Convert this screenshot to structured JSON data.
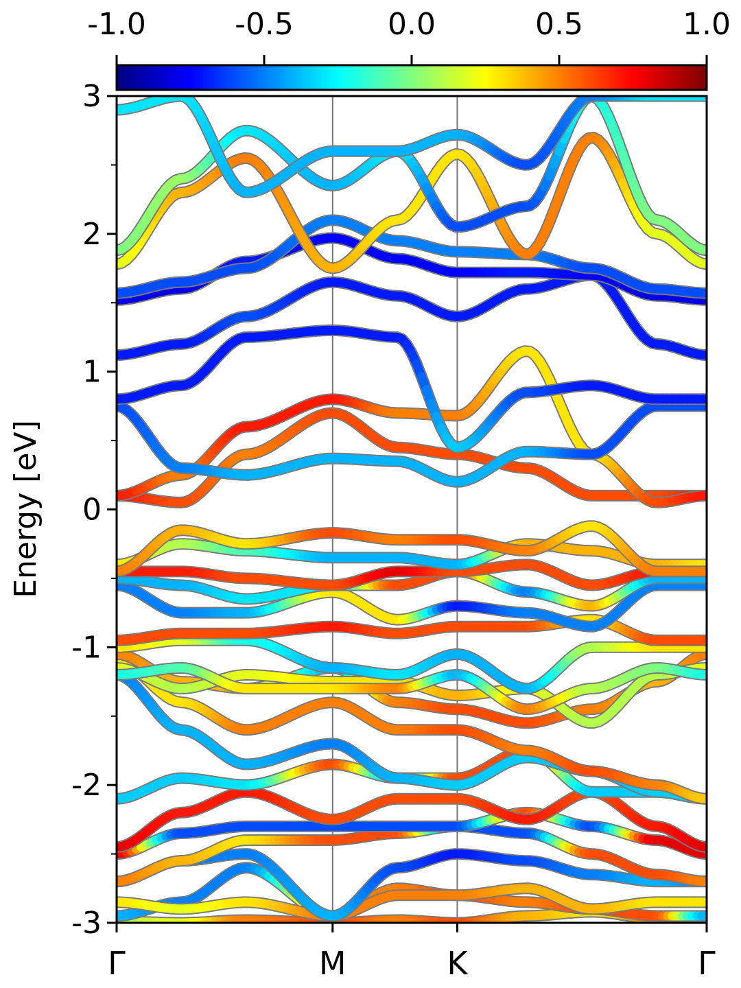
{
  "chart_data": {
    "type": "line",
    "title": "",
    "xlabel": "",
    "ylabel": "Energy [eV]",
    "ylim": [
      -3,
      3
    ],
    "y_ticks": [
      -3,
      -2,
      -1,
      0,
      1,
      2,
      3
    ],
    "x_ticks": [
      {
        "label": "Γ",
        "k": 0.0
      },
      {
        "label": "M",
        "k": 1.0
      },
      {
        "label": "K",
        "k": 1.577
      },
      {
        "label": "Γ",
        "k": 2.732
      }
    ],
    "colorbar": {
      "colormap": "jet",
      "range": [
        -1.0,
        1.0
      ],
      "ticks": [
        "-1.0",
        "-0.5",
        "0.0",
        "0.5",
        "1.0"
      ]
    },
    "series": [
      {
        "k": [
          0,
          0.3,
          0.6,
          1.0,
          1.3,
          1.577,
          1.9,
          2.2,
          2.5,
          2.732
        ],
        "values": [
          -2.99,
          -3.0,
          -2.98,
          -3.0,
          -2.98,
          -3.0,
          -2.95,
          -2.92,
          -2.97,
          -3.0
        ],
        "weights": [
          0.1,
          0.2,
          0.5,
          0.6,
          0.5,
          0.6,
          0.4,
          0.3,
          0.5,
          0.1
        ]
      },
      {
        "k": [
          0,
          0.3,
          0.6,
          1.0,
          1.3,
          1.577,
          1.9,
          2.2,
          2.5,
          2.732
        ],
        "values": [
          -2.95,
          -2.85,
          -2.6,
          -2.95,
          -2.75,
          -2.8,
          -2.85,
          -2.9,
          -2.95,
          -2.95
        ],
        "weights": [
          -0.4,
          -0.5,
          -0.5,
          0.5,
          0.5,
          0.6,
          0.5,
          0.6,
          0.6,
          -0.4
        ]
      },
      {
        "k": [
          0,
          0.3,
          0.6,
          1.0,
          1.3,
          1.577,
          1.9,
          2.2,
          2.5,
          2.732
        ],
        "values": [
          -2.85,
          -2.9,
          -2.85,
          -2.95,
          -2.8,
          -2.8,
          -2.75,
          -2.9,
          -2.85,
          -2.85
        ],
        "weights": [
          0.3,
          0.2,
          0.3,
          0.5,
          0.5,
          0.5,
          0.4,
          0.4,
          0.3,
          0.3
        ]
      },
      {
        "k": [
          0,
          0.3,
          0.6,
          1.0,
          1.3,
          1.577,
          1.9,
          2.2,
          2.5,
          2.732
        ],
        "values": [
          -2.7,
          -2.55,
          -2.5,
          -2.95,
          -2.6,
          -2.5,
          -2.55,
          -2.65,
          -2.7,
          -2.7
        ],
        "weights": [
          -0.5,
          -0.5,
          -0.5,
          -0.4,
          -0.6,
          -0.7,
          -0.6,
          -0.5,
          -0.4,
          -0.5
        ]
      },
      {
        "k": [
          0,
          0.3,
          0.6,
          1.0,
          1.3,
          1.577,
          1.9,
          2.2,
          2.5,
          2.732
        ],
        "values": [
          -2.7,
          -2.55,
          -2.4,
          -2.4,
          -2.35,
          -2.3,
          -2.35,
          -2.5,
          -2.65,
          -2.7
        ],
        "weights": [
          0.5,
          0.4,
          0.3,
          0.6,
          0.6,
          -0.6,
          -0.6,
          0.6,
          0.6,
          0.5
        ]
      },
      {
        "k": [
          0,
          0.3,
          0.6,
          1.0,
          1.3,
          1.577,
          1.9,
          2.2,
          2.5,
          2.732
        ],
        "values": [
          -2.5,
          -2.35,
          -2.3,
          -2.3,
          -2.3,
          -2.3,
          -2.2,
          -2.3,
          -2.4,
          -2.5
        ],
        "weights": [
          0.8,
          -0.6,
          -0.6,
          -0.6,
          -0.6,
          -0.6,
          0.6,
          -0.6,
          0.8,
          0.8
        ]
      },
      {
        "k": [
          0,
          0.3,
          0.6,
          1.0,
          1.3,
          1.577,
          1.9,
          2.2,
          2.5,
          2.732
        ],
        "values": [
          -2.45,
          -2.2,
          -2.05,
          -2.25,
          -2.1,
          -2.1,
          -2.25,
          -2.05,
          -2.3,
          -2.45
        ],
        "weights": [
          0.8,
          0.7,
          0.7,
          0.6,
          0.6,
          0.6,
          0.7,
          0.6,
          0.7,
          0.8
        ]
      },
      {
        "k": [
          0,
          0.3,
          0.6,
          1.0,
          1.3,
          1.577,
          1.9,
          2.2,
          2.5,
          2.732
        ],
        "values": [
          -2.1,
          -1.95,
          -2.0,
          -1.85,
          -1.95,
          -1.95,
          -1.75,
          -2.05,
          -2.05,
          -2.1
        ],
        "weights": [
          -0.35,
          -0.35,
          -0.3,
          0.6,
          -0.4,
          0.6,
          0.6,
          -0.35,
          -0.35,
          -0.35
        ]
      },
      {
        "k": [
          0,
          0.3,
          0.6,
          1.0,
          1.3,
          1.577,
          1.9,
          2.2,
          2.5,
          2.732
        ],
        "values": [
          -1.2,
          -1.6,
          -1.85,
          -1.7,
          -1.95,
          -2.0,
          -1.8,
          -1.9,
          -2.05,
          -2.1
        ],
        "weights": [
          -0.5,
          -0.4,
          -0.4,
          -0.5,
          -0.4,
          -0.35,
          -0.35,
          -0.4,
          -0.35,
          -0.35
        ]
      },
      {
        "k": [
          0,
          0.3,
          0.6,
          1.0,
          1.3,
          1.577,
          1.9,
          2.2,
          2.5,
          2.732
        ],
        "values": [
          -1.1,
          -1.4,
          -1.6,
          -1.4,
          -1.6,
          -1.6,
          -1.75,
          -1.9,
          -2.0,
          -2.1
        ],
        "weights": [
          0.3,
          0.3,
          0.5,
          0.5,
          0.5,
          0.6,
          0.5,
          0.6,
          0.5,
          0.35
        ]
      },
      {
        "k": [
          0,
          0.3,
          0.6,
          1.0,
          1.3,
          1.577,
          1.9,
          2.2,
          2.5,
          2.732
        ],
        "values": [
          -1.05,
          -1.25,
          -1.3,
          -1.15,
          -1.4,
          -1.45,
          -1.55,
          -1.45,
          -1.25,
          -1.05
        ],
        "weights": [
          0.5,
          0.4,
          0.4,
          -0.4,
          0.5,
          0.6,
          0.6,
          0.5,
          0.4,
          0.5
        ]
      },
      {
        "k": [
          0,
          0.3,
          0.6,
          1.0,
          1.3,
          1.577,
          1.9,
          2.2,
          2.5,
          2.732
        ],
        "values": [
          -1.15,
          -1.3,
          -1.2,
          -1.25,
          -1.25,
          -1.35,
          -1.3,
          -1.55,
          -1.2,
          -1.15
        ],
        "weights": [
          0.2,
          0.1,
          0.2,
          0.3,
          0.3,
          0.4,
          0.2,
          0.1,
          0.1,
          0.2
        ]
      },
      {
        "k": [
          0,
          0.3,
          0.6,
          1.0,
          1.3,
          1.577,
          1.9,
          2.2,
          2.5,
          2.732
        ],
        "values": [
          -1.2,
          -1.15,
          -1.3,
          -1.3,
          -1.3,
          -1.2,
          -1.45,
          -1.3,
          -1.15,
          -1.2
        ],
        "weights": [
          -0.2,
          -0.1,
          0.3,
          0.3,
          0.5,
          -0.4,
          0.5,
          0.1,
          0.0,
          -0.2
        ]
      },
      {
        "k": [
          0,
          0.3,
          0.6,
          1.0,
          1.3,
          1.577,
          1.9,
          2.2,
          2.5,
          2.732
        ],
        "values": [
          -1.0,
          -0.95,
          -0.95,
          -1.15,
          -1.2,
          -1.05,
          -1.3,
          -1.0,
          -1.0,
          -1.0
        ],
        "weights": [
          0.3,
          0.2,
          -0.2,
          -0.4,
          -0.3,
          -0.4,
          -0.4,
          0.1,
          0.3,
          0.3
        ]
      },
      {
        "k": [
          0,
          0.3,
          0.6,
          1.0,
          1.3,
          1.577,
          1.9,
          2.2,
          2.5,
          2.732
        ],
        "values": [
          -0.95,
          -0.9,
          -0.9,
          -0.85,
          -0.9,
          -0.85,
          -0.85,
          -0.8,
          -0.95,
          -0.95
        ],
        "weights": [
          0.6,
          0.6,
          0.6,
          0.7,
          0.6,
          0.6,
          0.6,
          0.3,
          0.6,
          0.6
        ]
      },
      {
        "k": [
          0,
          0.3,
          0.6,
          1.0,
          1.3,
          1.577,
          1.9,
          2.2,
          2.5,
          2.732
        ],
        "values": [
          -0.55,
          -0.75,
          -0.75,
          -0.6,
          -0.8,
          -0.7,
          -0.75,
          -0.85,
          -0.55,
          -0.55
        ],
        "weights": [
          -0.5,
          -0.5,
          -0.4,
          0.3,
          0.3,
          -0.7,
          -0.5,
          -0.5,
          -0.5,
          -0.5
        ]
      },
      {
        "k": [
          0,
          0.3,
          0.6,
          1.0,
          1.3,
          1.577,
          1.9,
          2.2,
          2.5,
          2.732
        ],
        "values": [
          -0.5,
          -0.55,
          -0.65,
          -0.55,
          -0.55,
          -0.45,
          -0.6,
          -0.7,
          -0.5,
          -0.5
        ],
        "weights": [
          -0.4,
          -0.4,
          -0.3,
          -0.3,
          0.6,
          0.6,
          -0.5,
          0.4,
          -0.4,
          -0.4
        ]
      },
      {
        "k": [
          0,
          0.3,
          0.6,
          1.0,
          1.3,
          1.577,
          1.9,
          2.2,
          2.5,
          2.732
        ],
        "values": [
          -0.45,
          -0.45,
          -0.5,
          -0.55,
          -0.45,
          -0.45,
          -0.4,
          -0.55,
          -0.45,
          -0.45
        ],
        "weights": [
          0.7,
          0.7,
          0.6,
          0.6,
          0.8,
          0.6,
          0.6,
          0.6,
          0.7,
          0.7
        ]
      },
      {
        "k": [
          0,
          0.3,
          0.6,
          1.0,
          1.3,
          1.577,
          1.9,
          2.2,
          2.5,
          2.732
        ],
        "values": [
          -0.4,
          -0.25,
          -0.3,
          -0.35,
          -0.35,
          -0.4,
          -0.25,
          -0.3,
          -0.4,
          -0.4
        ],
        "weights": [
          0.3,
          0.1,
          -0.1,
          -0.4,
          -0.4,
          -0.4,
          0.4,
          0.4,
          0.4,
          0.3
        ]
      },
      {
        "k": [
          0,
          0.3,
          0.6,
          1.0,
          1.3,
          1.577,
          1.9,
          2.2,
          2.5,
          2.732
        ],
        "values": [
          -0.45,
          -0.15,
          -0.25,
          -0.17,
          -0.22,
          -0.22,
          -0.3,
          -0.12,
          -0.45,
          -0.45
        ],
        "weights": [
          0.5,
          0.4,
          0.3,
          0.6,
          0.5,
          0.6,
          0.5,
          0.3,
          0.5,
          0.5
        ]
      },
      {
        "k": [
          0,
          0.3,
          0.6,
          1.0,
          1.3,
          1.577,
          1.9,
          2.2,
          2.5,
          2.732
        ],
        "values": [
          0.1,
          0.05,
          0.4,
          0.7,
          0.45,
          0.4,
          0.3,
          0.1,
          0.1,
          0.1
        ],
        "weights": [
          0.7,
          0.6,
          0.5,
          0.6,
          0.6,
          0.6,
          0.6,
          0.6,
          0.6,
          0.7
        ]
      },
      {
        "k": [
          0,
          0.3,
          0.6,
          1.0,
          1.3,
          1.577,
          1.9,
          2.2,
          2.5,
          2.732
        ],
        "values": [
          0.1,
          0.25,
          0.6,
          0.8,
          0.7,
          0.68,
          1.15,
          0.4,
          0.05,
          0.1
        ],
        "weights": [
          0.7,
          0.5,
          0.7,
          0.7,
          0.5,
          0.5,
          0.3,
          0.3,
          0.6,
          0.7
        ]
      },
      {
        "k": [
          0,
          0.3,
          0.6,
          1.0,
          1.3,
          1.577,
          1.9,
          2.2,
          2.5,
          2.732
        ],
        "values": [
          0.75,
          0.3,
          0.25,
          0.37,
          0.35,
          0.2,
          0.42,
          0.4,
          0.75,
          0.75
        ],
        "weights": [
          -0.6,
          -0.5,
          -0.4,
          -0.4,
          -0.4,
          -0.4,
          -0.4,
          -0.6,
          -0.6,
          -0.6
        ]
      },
      {
        "k": [
          0,
          0.3,
          0.6,
          1.0,
          1.3,
          1.577,
          1.9,
          2.2,
          2.5,
          2.732
        ],
        "values": [
          0.8,
          0.9,
          1.25,
          1.3,
          1.25,
          0.45,
          0.85,
          0.9,
          0.8,
          0.8
        ],
        "weights": [
          -0.7,
          -0.7,
          -0.7,
          -0.7,
          -0.7,
          -0.35,
          -0.6,
          -0.7,
          -0.7,
          -0.7
        ]
      },
      {
        "k": [
          0,
          0.3,
          0.6,
          1.0,
          1.3,
          1.577,
          1.9,
          2.2,
          2.5,
          2.732
        ],
        "values": [
          1.12,
          1.2,
          1.4,
          1.65,
          1.55,
          1.4,
          1.6,
          1.7,
          1.2,
          1.12
        ],
        "weights": [
          -0.7,
          -0.7,
          -0.6,
          -0.7,
          -0.7,
          -0.7,
          -0.7,
          -0.7,
          -0.7,
          -0.7
        ]
      },
      {
        "k": [
          0,
          0.3,
          0.6,
          1.0,
          1.3,
          1.577,
          1.9,
          2.2,
          2.5,
          2.732
        ],
        "values": [
          1.52,
          1.6,
          1.8,
          1.97,
          1.82,
          1.72,
          1.72,
          1.7,
          1.55,
          1.52
        ],
        "weights": [
          -0.8,
          -0.8,
          -0.7,
          -0.75,
          -0.75,
          -0.75,
          -0.7,
          -0.75,
          -0.8,
          -0.8
        ]
      },
      {
        "k": [
          0,
          0.3,
          0.6,
          1.0,
          1.3,
          1.577,
          1.9,
          2.2,
          2.5,
          2.732
        ],
        "values": [
          1.57,
          1.65,
          1.75,
          2.1,
          1.95,
          1.87,
          1.85,
          1.75,
          1.6,
          1.57
        ],
        "weights": [
          -0.6,
          -0.6,
          -0.6,
          -0.5,
          -0.5,
          -0.5,
          -0.5,
          -0.6,
          -0.6,
          -0.6
        ]
      },
      {
        "k": [
          0,
          0.3,
          0.6,
          1.0,
          1.3,
          1.577,
          1.9,
          2.2,
          2.5,
          2.732
        ],
        "values": [
          1.78,
          2.3,
          2.55,
          1.75,
          2.1,
          2.58,
          1.85,
          2.7,
          2.0,
          1.78
        ],
        "weights": [
          0.2,
          0.4,
          0.5,
          0.4,
          0.3,
          0.3,
          0.5,
          0.5,
          0.2,
          0.2
        ]
      },
      {
        "k": [
          0,
          0.3,
          0.6,
          1.0,
          1.3,
          1.577,
          1.9,
          2.2,
          2.5,
          2.732
        ],
        "values": [
          1.88,
          2.4,
          2.75,
          2.35,
          2.6,
          2.05,
          2.2,
          3.0,
          2.1,
          1.88
        ],
        "weights": [
          0.0,
          0.05,
          -0.3,
          -0.4,
          -0.3,
          -0.6,
          -0.6,
          -0.2,
          0.0,
          0.0
        ]
      },
      {
        "k": [
          0,
          0.3,
          0.6,
          1.0,
          1.3,
          1.577,
          1.9,
          2.2,
          2.5,
          2.732
        ],
        "values": [
          2.9,
          3.0,
          2.3,
          2.6,
          2.6,
          2.72,
          2.5,
          3.0,
          3.0,
          3.0
        ],
        "weights": [
          -0.3,
          -0.3,
          -0.4,
          -0.4,
          -0.4,
          -0.4,
          -0.6,
          -0.5,
          -0.3,
          -0.3
        ]
      }
    ]
  }
}
